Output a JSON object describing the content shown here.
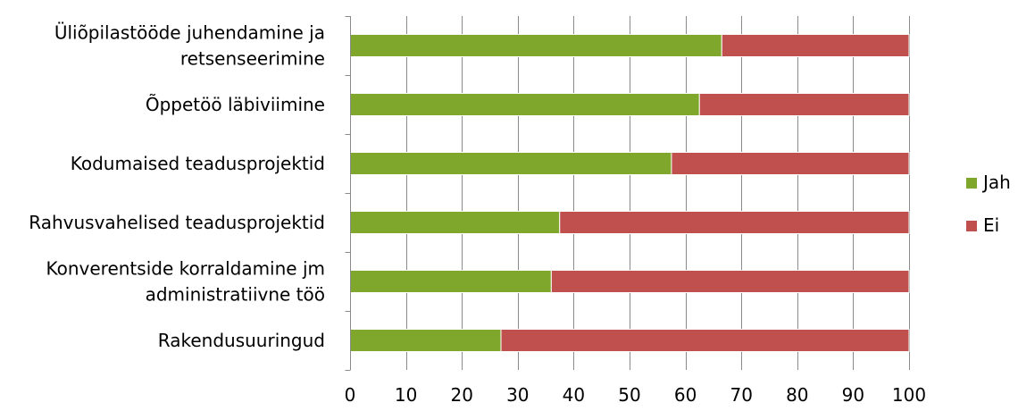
{
  "chart_data": {
    "type": "bar",
    "orientation": "horizontal",
    "stacked": true,
    "title": "",
    "xlabel": "",
    "ylabel": "",
    "categories": [
      [
        "Üliõpilastööde juhendamine ja",
        "retsenseerimine"
      ],
      [
        "Õppetöö läbiviimine"
      ],
      [
        "Kodumaised teadusprojektid"
      ],
      [
        "Rahvusvahelised teadusprojektid"
      ],
      [
        "Konverentside korraldamine jm",
        "administratiivne töö"
      ],
      [
        "Rakendusuuringud"
      ]
    ],
    "series": [
      {
        "name": "Jah",
        "color": "#7ea72b",
        "values": [
          66.5,
          62.5,
          57.5,
          37.5,
          36,
          27
        ]
      },
      {
        "name": "Ei",
        "color": "#c0504d",
        "values": [
          33.5,
          37.5,
          42.5,
          62.5,
          64,
          73
        ]
      }
    ],
    "xlim": [
      0,
      100
    ],
    "xticks": [
      "0",
      "10",
      "20",
      "30",
      "40",
      "50",
      "60",
      "70",
      "80",
      "90",
      "100"
    ],
    "grid": true,
    "legend_position": "right"
  }
}
